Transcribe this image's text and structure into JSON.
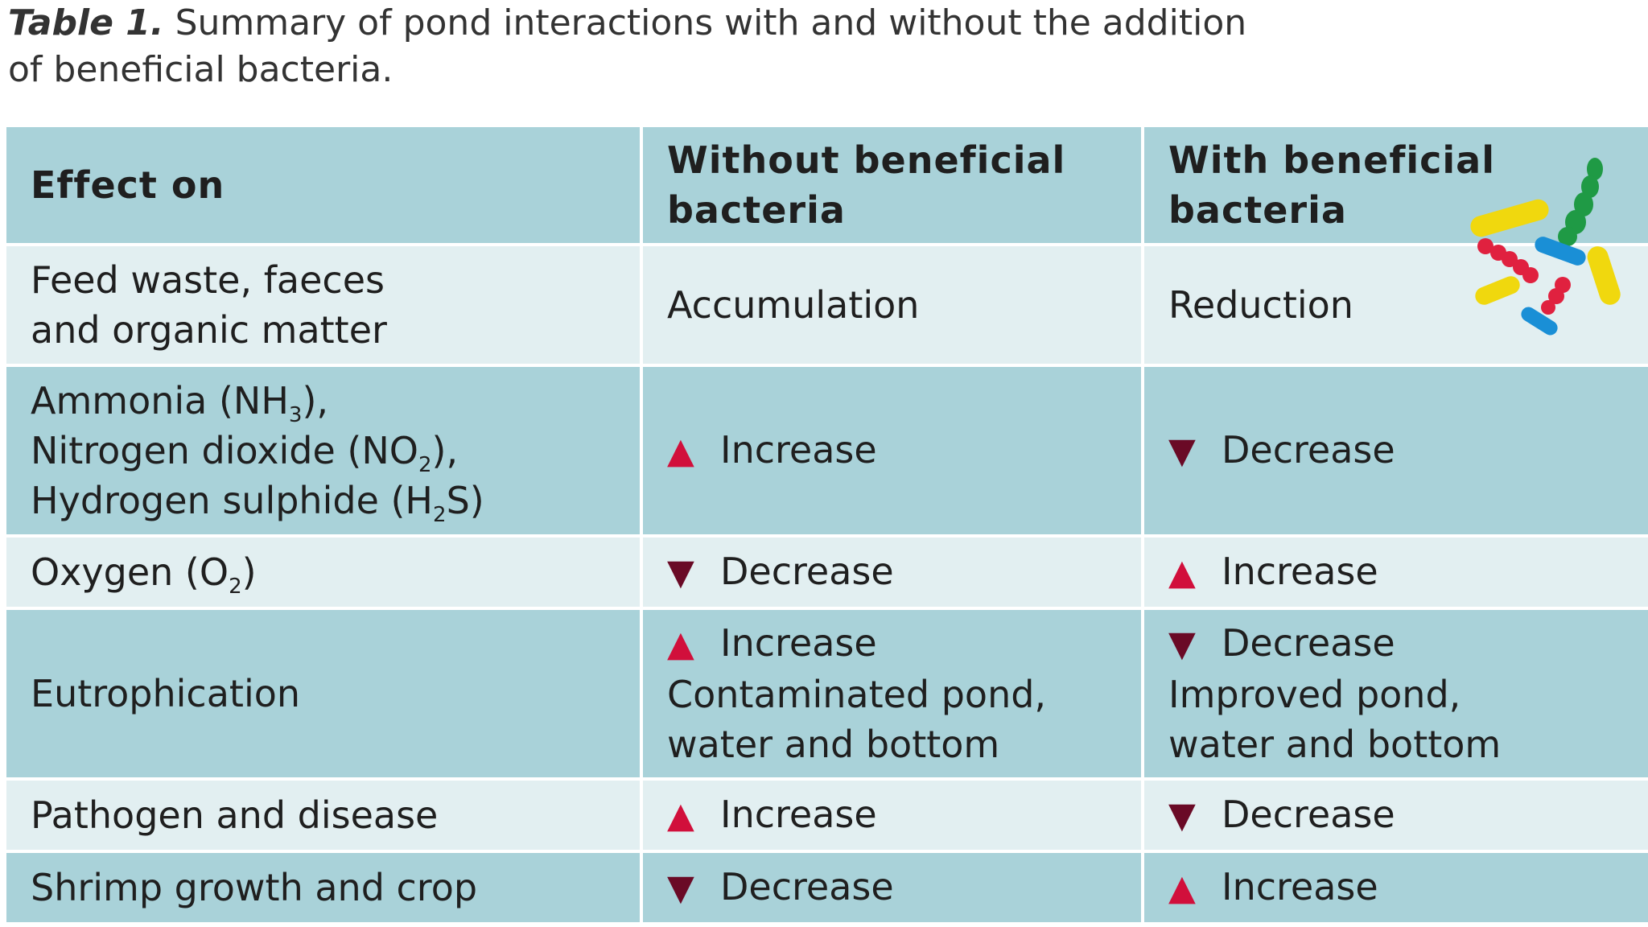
{
  "caption": {
    "label": "Table 1.",
    "line1": "Summary of pond interactions with and without the addition",
    "line2": "of beneficial bacteria."
  },
  "table": {
    "headers": [
      "Effect on",
      "Without beneficial",
      "bacteria",
      "With beneficial",
      "bacteria"
    ],
    "rows": [
      {
        "effect_lines": [
          "Feed waste, faeces",
          "and organic matter"
        ],
        "without": {
          "arrow": "",
          "text": "Accumulation",
          "extra": []
        },
        "with": {
          "arrow": "",
          "text": "Reduction",
          "extra": []
        }
      },
      {
        "effect": {
          "ammonia_a": "Ammonia (NH",
          "ammonia_sub": "3",
          "ammonia_b": "),",
          "nitro_a": "Nitrogen dioxide (NO",
          "nitro_sub": "2",
          "nitro_b": "),",
          "hydro_a": "Hydrogen sulphide (H",
          "hydro_sub": "2",
          "hydro_b": "S)"
        },
        "without": {
          "arrow": "up",
          "text": "Increase"
        },
        "with": {
          "arrow": "down",
          "text": "Decrease"
        }
      },
      {
        "effect": {
          "a": "Oxygen (O",
          "sub": "2",
          "b": ")"
        },
        "without": {
          "arrow": "down",
          "text": "Decrease"
        },
        "with": {
          "arrow": "up",
          "text": "Increase"
        }
      },
      {
        "effect_text": "Eutrophication",
        "without": {
          "arrow": "up",
          "text": "Increase",
          "extra": [
            "Contaminated pond,",
            "water and bottom"
          ]
        },
        "with": {
          "arrow": "down",
          "text": "Decrease",
          "extra": [
            "Improved pond,",
            "water and bottom"
          ]
        }
      },
      {
        "effect_text": "Pathogen and disease",
        "without": {
          "arrow": "up",
          "text": "Increase"
        },
        "with": {
          "arrow": "down",
          "text": "Decrease"
        }
      },
      {
        "effect_text": "Shrimp growth and crop",
        "without": {
          "arrow": "down",
          "text": "Decrease"
        },
        "with": {
          "arrow": "up",
          "text": "Increase"
        }
      }
    ]
  },
  "glyphs": {
    "up": "▲",
    "down": "▼"
  },
  "colors": {
    "row_dark": "#a9d2d9",
    "row_light": "#e2eff1",
    "arrow_up": "#d10f3b",
    "arrow_down": "#6a0a26"
  },
  "illustration": {
    "name": "bacteria-illustration"
  }
}
